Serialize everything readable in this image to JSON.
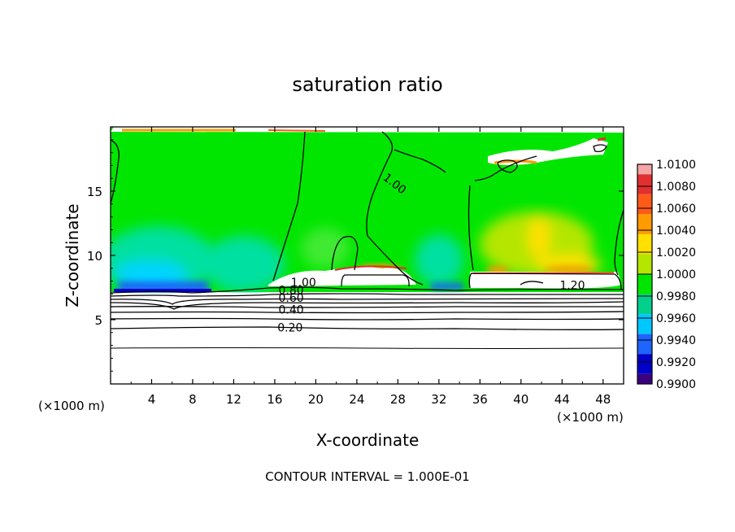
{
  "chart_data": {
    "type": "contour",
    "title": "saturation ratio",
    "xlabel": "X-coordinate",
    "ylabel": "Z-coordinate",
    "x_unit": "(×1000 m)",
    "x_unit_right": "(×1000 m)",
    "footer": "CONTOUR INTERVAL = 1.000E-01",
    "xlim": [
      0,
      50
    ],
    "ylim": [
      0,
      20
    ],
    "xticks": [
      "4",
      "8",
      "12",
      "16",
      "20",
      "24",
      "28",
      "32",
      "36",
      "40",
      "44",
      "48"
    ],
    "xtick_values": [
      4,
      8,
      12,
      16,
      20,
      24,
      28,
      32,
      36,
      40,
      44,
      48
    ],
    "yticks": [
      "5",
      "10",
      "15"
    ],
    "ytick_values": [
      5,
      10,
      15
    ],
    "colorbar": {
      "labels": [
        "1.0100",
        "1.0080",
        "1.0060",
        "1.0040",
        "1.0020",
        "1.0000",
        "0.9980",
        "0.9960",
        "0.9940",
        "0.9920",
        "0.9900"
      ],
      "colors": [
        "#f5a5a5",
        "#e03030",
        "#ff5a1a",
        "#ff9a00",
        "#ffe000",
        "#b4e600",
        "#00e600",
        "#00d08c",
        "#00c8ff",
        "#1e64ff",
        "#0000c8",
        "#3a0080"
      ]
    },
    "contour_labels": [
      {
        "text": "1.00",
        "x": 27.7,
        "z": 15.6,
        "angle": 38
      },
      {
        "text": "1.20",
        "x": 45.0,
        "z": 7.7,
        "angle": 0
      },
      {
        "text": "1.00",
        "x": 18.8,
        "z": 7.9,
        "angle": 0
      },
      {
        "text": "0.80",
        "x": 17.6,
        "z": 7.3,
        "angle": 0
      },
      {
        "text": "0.60",
        "x": 17.6,
        "z": 6.7,
        "angle": 0
      },
      {
        "text": "0.40",
        "x": 17.6,
        "z": 5.8,
        "angle": 0
      },
      {
        "text": "0.20",
        "x": 17.5,
        "z": 4.4,
        "angle": 0
      }
    ]
  }
}
